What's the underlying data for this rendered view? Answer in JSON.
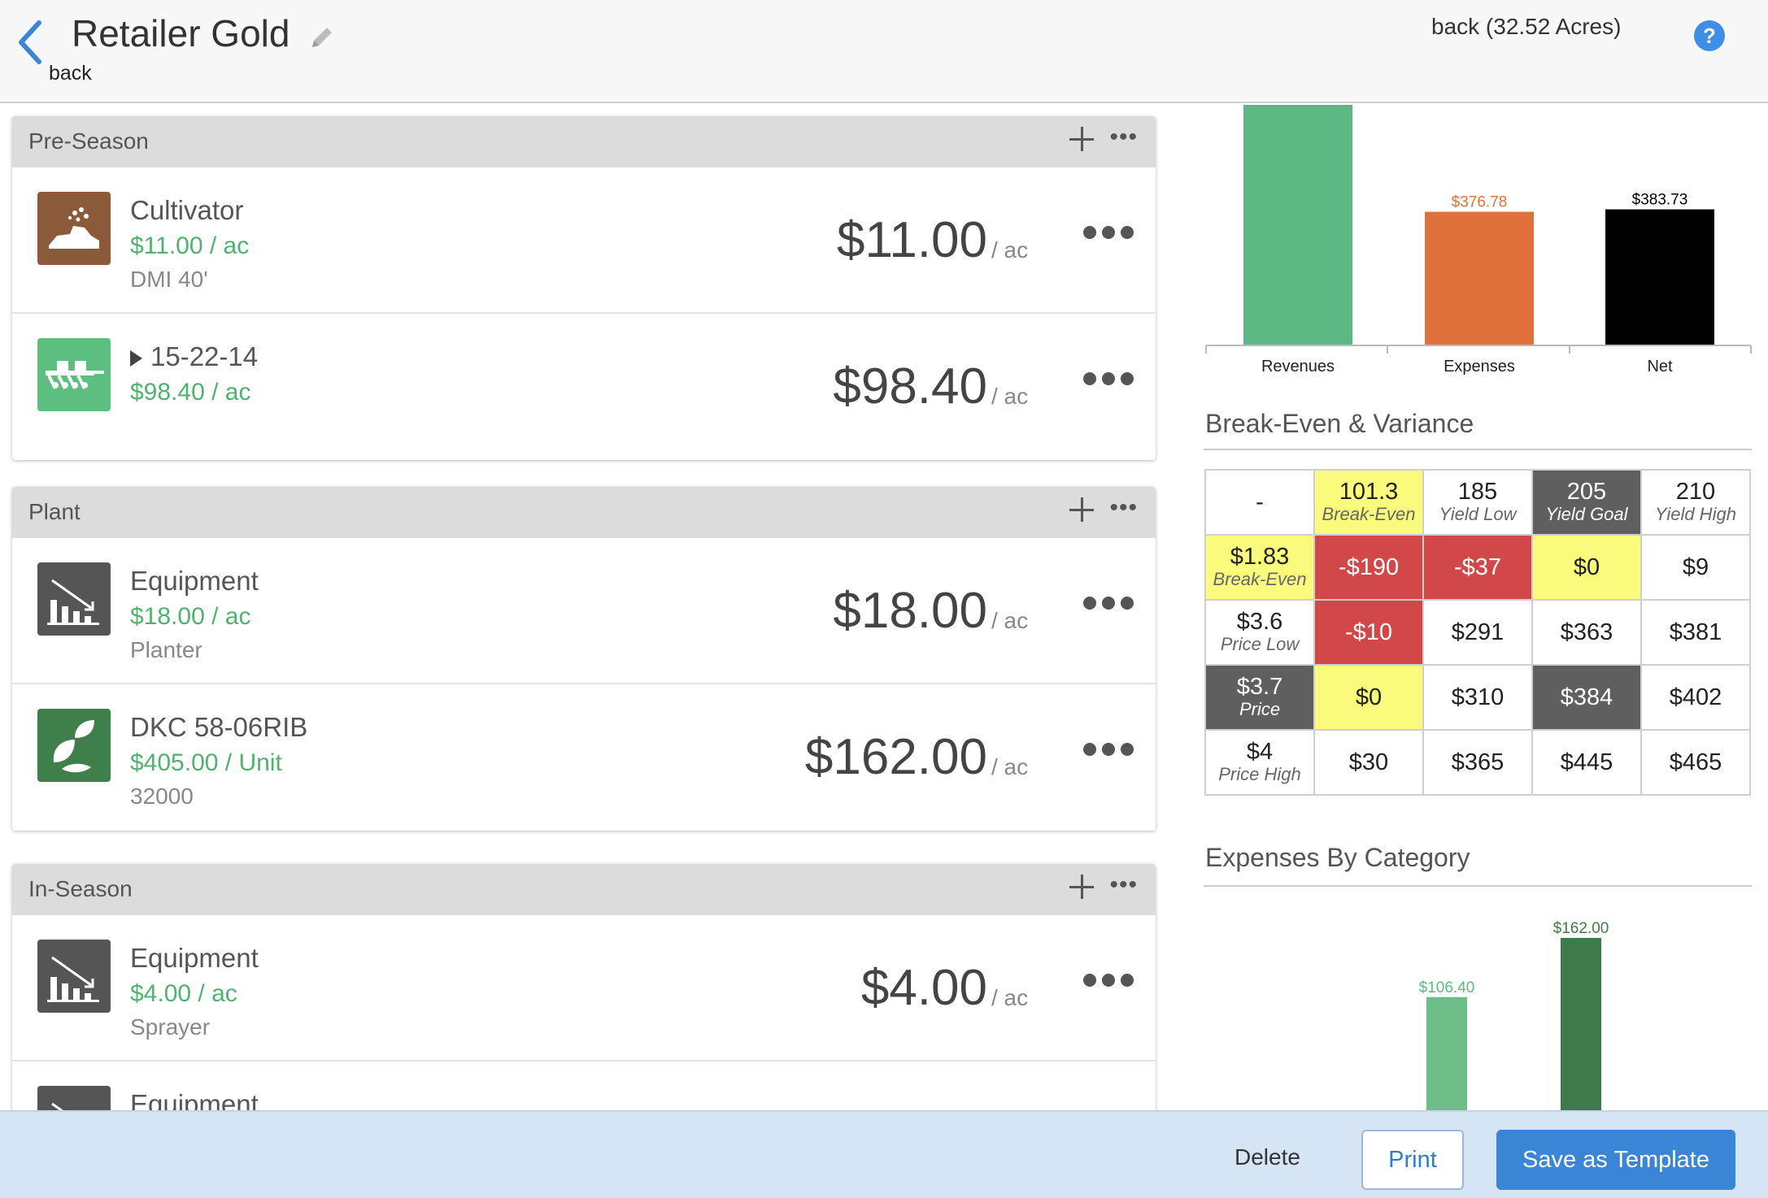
{
  "header": {
    "title": "Retailer Gold",
    "back_label": "back",
    "field_label": "back (32.52 Acres)",
    "help_label": "?"
  },
  "sections": [
    {
      "title": "Pre-Season",
      "items": [
        {
          "name": "Cultivator",
          "rate": "$11.00 / ac",
          "sub": "DMI 40'",
          "amount": "$11.00",
          "unit": "/ ac",
          "icon": "cultivator-icon",
          "icon_color": "#8a5a3a"
        },
        {
          "name": "15-22-14",
          "rate": "$98.40 / ac",
          "sub": "",
          "amount": "$98.40",
          "unit": "/ ac",
          "icon": "fertilizer-applicator-icon",
          "icon_color": "#5cbf80",
          "expandable": true
        }
      ]
    },
    {
      "title": "Plant",
      "items": [
        {
          "name": "Equipment",
          "rate": "$18.00 / ac",
          "sub": "Planter",
          "amount": "$18.00",
          "unit": "/ ac",
          "icon": "depreciation-chart-icon",
          "icon_color": "#555555"
        },
        {
          "name": "DKC 58-06RIB",
          "rate": "$405.00 / Unit",
          "sub": "32000",
          "amount": "$162.00",
          "unit": "/ ac",
          "icon": "seed-leaf-icon",
          "icon_color": "#3f7f4c"
        }
      ]
    },
    {
      "title": "In-Season",
      "items": [
        {
          "name": "Equipment",
          "rate": "$4.00 / ac",
          "sub": "Sprayer",
          "amount": "$4.00",
          "unit": "/ ac",
          "icon": "depreciation-chart-icon",
          "icon_color": "#555555"
        },
        {
          "name": "Equipment",
          "rate": "",
          "sub": "",
          "amount": "",
          "unit": "",
          "icon": "depreciation-chart-icon",
          "icon_color": "#555555"
        }
      ]
    }
  ],
  "chart_data": [
    {
      "type": "bar",
      "categories": [
        "Revenues",
        "Expenses",
        "Net"
      ],
      "values": [
        760.51,
        376.78,
        383.73
      ],
      "data_labels": [
        "",
        "$376.78",
        "$383.73"
      ],
      "colors": [
        "#5cb882",
        "#e0703c",
        "#000000"
      ],
      "label_colors": [
        "#333333",
        "#e0703c",
        "#000000"
      ],
      "ylim": [
        0,
        800
      ]
    },
    {
      "type": "bar",
      "categories": [
        "",
        ""
      ],
      "values": [
        106.4,
        162.0
      ],
      "data_labels": [
        "$106.40",
        "$162.00"
      ],
      "colors": [
        "#6cbd86",
        "#3f7a4a"
      ],
      "label_colors": [
        "#5cb882",
        "#3f7a4a"
      ],
      "ylim": [
        0,
        175
      ]
    }
  ],
  "right": {
    "breakeven_title": "Break-Even & Variance",
    "expenses_title": "Expenses By Category"
  },
  "breakeven": {
    "corner": "-",
    "columns": [
      {
        "value": "101.3",
        "label": "Break-Even",
        "style": "y"
      },
      {
        "value": "185",
        "label": "Yield Low",
        "style": ""
      },
      {
        "value": "205",
        "label": "Yield Goal",
        "style": "d"
      },
      {
        "value": "210",
        "label": "Yield High",
        "style": ""
      }
    ],
    "rows": [
      {
        "value": "$1.83",
        "label": "Break-Even",
        "style": "y",
        "cells": [
          {
            "v": "-$190",
            "s": "r"
          },
          {
            "v": "-$37",
            "s": "r"
          },
          {
            "v": "$0",
            "s": "y"
          },
          {
            "v": "$9",
            "s": ""
          }
        ]
      },
      {
        "value": "$3.6",
        "label": "Price Low",
        "style": "",
        "cells": [
          {
            "v": "-$10",
            "s": "r"
          },
          {
            "v": "$291",
            "s": ""
          },
          {
            "v": "$363",
            "s": ""
          },
          {
            "v": "$381",
            "s": ""
          }
        ]
      },
      {
        "value": "$3.7",
        "label": "Price",
        "style": "d",
        "cells": [
          {
            "v": "$0",
            "s": "y"
          },
          {
            "v": "$310",
            "s": ""
          },
          {
            "v": "$384",
            "s": "d"
          },
          {
            "v": "$402",
            "s": ""
          }
        ]
      },
      {
        "value": "$4",
        "label": "Price High",
        "style": "",
        "cells": [
          {
            "v": "$30",
            "s": ""
          },
          {
            "v": "$365",
            "s": ""
          },
          {
            "v": "$445",
            "s": ""
          },
          {
            "v": "$465",
            "s": ""
          }
        ]
      }
    ]
  },
  "footer": {
    "delete_label": "Delete",
    "print_label": "Print",
    "save_label": "Save as Template"
  }
}
